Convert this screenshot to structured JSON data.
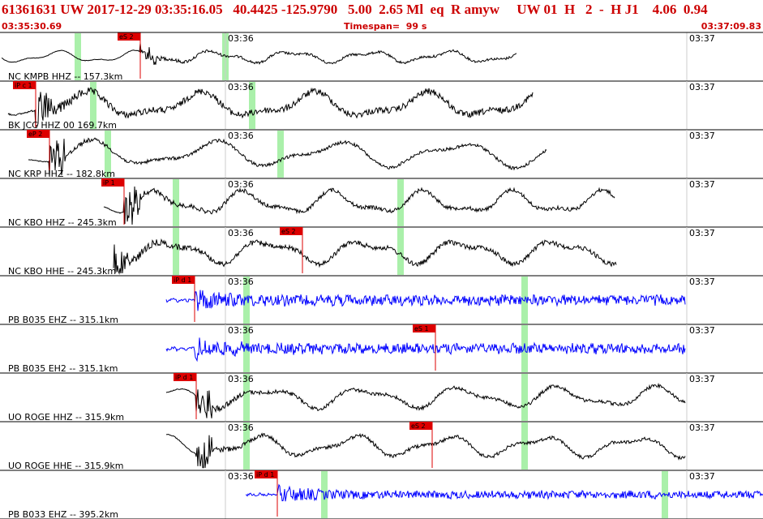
{
  "header": {
    "event_line": "61361631 UW 2017-12-29 03:35:16.05   40.4425 -125.9790   5.00  2.65 Ml  eq  R amyw     UW 01  H   2  -  H J1    4.06  0.94",
    "start_time": "03:35:30.69",
    "timespan": "Timespan=  99 s",
    "end_time": "03:37:09.83"
  },
  "colors": {
    "header_text": "#cc0000",
    "trace_short_period": "#000000",
    "trace_broadband": "#0000ff",
    "pick_box": "#dd0000",
    "shade": "#aaf0aa",
    "grid": "#cccccc"
  },
  "traces": [
    {
      "label": "NC KMPB HHZ -- 157.3km",
      "color": "black",
      "tick_labels": [
        "03:36",
        "03:37"
      ],
      "picks": [
        {
          "text": "eS 2"
        }
      ]
    },
    {
      "label": "BK JCC HHZ 00 169.7km",
      "color": "black",
      "tick_labels": [
        "03:36",
        "03:37"
      ],
      "picks": [
        {
          "text": "iP c 1"
        }
      ]
    },
    {
      "label": "NC KRP HHZ -- 182.8km",
      "color": "black",
      "tick_labels": [
        "03:36",
        "03:37"
      ],
      "picks": [
        {
          "text": "eP 2"
        }
      ]
    },
    {
      "label": "NC KBO HHZ -- 245.3km",
      "color": "black",
      "tick_labels": [
        "03:36",
        "03:37"
      ],
      "picks": [
        {
          "text": "iP 1"
        }
      ]
    },
    {
      "label": "NC KBO HHE -- 245.3km",
      "color": "black",
      "tick_labels": [
        "03:36",
        "03:37"
      ],
      "picks": [
        {
          "text": "eS 2"
        }
      ]
    },
    {
      "label": "PB B035 EHZ -- 315.1km",
      "color": "blue",
      "tick_labels": [
        "03:36",
        "03:37"
      ],
      "picks": [
        {
          "text": "iP d 1"
        }
      ]
    },
    {
      "label": "PB B035 EH2 -- 315.1km",
      "color": "blue",
      "tick_labels": [
        "03:36",
        "03:37"
      ],
      "picks": [
        {
          "text": "eS 1"
        }
      ]
    },
    {
      "label": "UO ROGE HHZ -- 315.9km",
      "color": "black",
      "tick_labels": [
        "03:36",
        "03:37"
      ],
      "picks": [
        {
          "text": "iP d 1"
        }
      ]
    },
    {
      "label": "UO ROGE HHE -- 315.9km",
      "color": "black",
      "tick_labels": [
        "03:36",
        "03:37"
      ],
      "picks": [
        {
          "text": "eS 2"
        }
      ]
    },
    {
      "label": "PB B033 EHZ -- 395.2km",
      "color": "blue",
      "tick_labels": [
        "03:36",
        "03:37"
      ],
      "picks": [
        {
          "text": "iP d 1"
        }
      ]
    }
  ]
}
